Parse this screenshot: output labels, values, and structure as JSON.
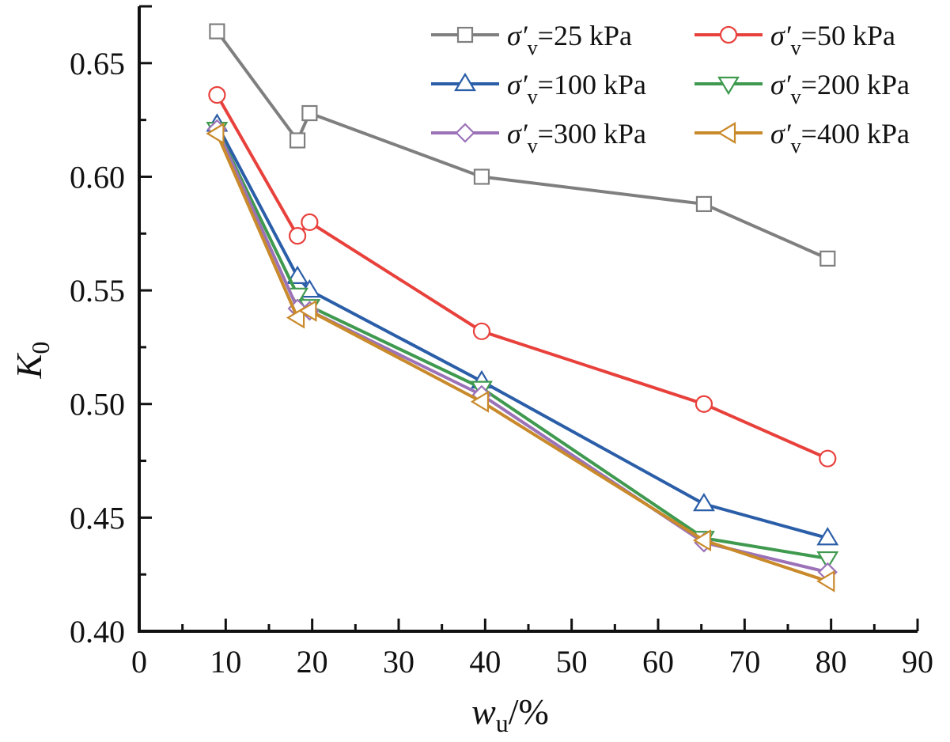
{
  "chart_data": {
    "type": "line",
    "title": "",
    "xlabel": "w_u/%",
    "xlabel_main": "w",
    "xlabel_sub": "u",
    "xlabel_suffix": "/%",
    "ylabel": "K_0",
    "ylabel_main": "K",
    "ylabel_sub": "0",
    "xlim": [
      0,
      90
    ],
    "ylim": [
      0.4,
      0.675
    ],
    "xticks": [
      0,
      10,
      20,
      30,
      40,
      50,
      60,
      70,
      80,
      90
    ],
    "xtick_labels": [
      "0",
      "10",
      "20",
      "30",
      "40",
      "50",
      "60",
      "70",
      "80",
      "90"
    ],
    "yticks": [
      0.4,
      0.45,
      0.5,
      0.55,
      0.6,
      0.65
    ],
    "ytick_labels": [
      "0.40",
      "0.45",
      "0.50",
      "0.55",
      "0.60",
      "0.65"
    ],
    "grid": false,
    "legend_position": "top-right",
    "x": [
      9.0,
      18.3,
      19.7,
      39.6,
      65.3,
      79.6
    ],
    "series": [
      {
        "name": "σ′v=25 kPa",
        "label_pre": "σ′",
        "label_sub": "v",
        "label_post": "=25 kPa",
        "color": "#7f7f7f",
        "marker": "square",
        "values": [
          0.664,
          0.616,
          0.628,
          0.6,
          0.588,
          0.564
        ]
      },
      {
        "name": "σ′v=50 kPa",
        "label_pre": "σ′",
        "label_sub": "v",
        "label_post": "=50 kPa",
        "color": "#e8413c",
        "marker": "circle",
        "values": [
          0.636,
          0.574,
          0.58,
          0.532,
          0.5,
          0.476
        ]
      },
      {
        "name": "σ′v=100 kPa",
        "label_pre": "σ′",
        "label_sub": "v",
        "label_post": "=100 kPa",
        "color": "#2b5ea8",
        "marker": "triangle-up",
        "values": [
          0.623,
          0.556,
          0.55,
          0.51,
          0.456,
          0.441
        ]
      },
      {
        "name": "σ′v=200 kPa",
        "label_pre": "σ′",
        "label_sub": "v",
        "label_post": "=200 kPa",
        "color": "#3f9a4f",
        "marker": "triangle-down",
        "values": [
          0.621,
          0.548,
          0.543,
          0.507,
          0.441,
          0.432
        ]
      },
      {
        "name": "σ′v=300 kPa",
        "label_pre": "σ′",
        "label_sub": "v",
        "label_post": "=300 kPa",
        "color": "#9b72b8",
        "marker": "diamond",
        "values": [
          0.621,
          0.542,
          0.541,
          0.504,
          0.439,
          0.426
        ]
      },
      {
        "name": "σ′v=400 kPa",
        "label_pre": "σ′",
        "label_sub": "v",
        "label_post": "=400 kPa",
        "color": "#c98a2b",
        "marker": "triangle-left",
        "values": [
          0.619,
          0.538,
          0.541,
          0.501,
          0.44,
          0.422
        ]
      }
    ]
  }
}
